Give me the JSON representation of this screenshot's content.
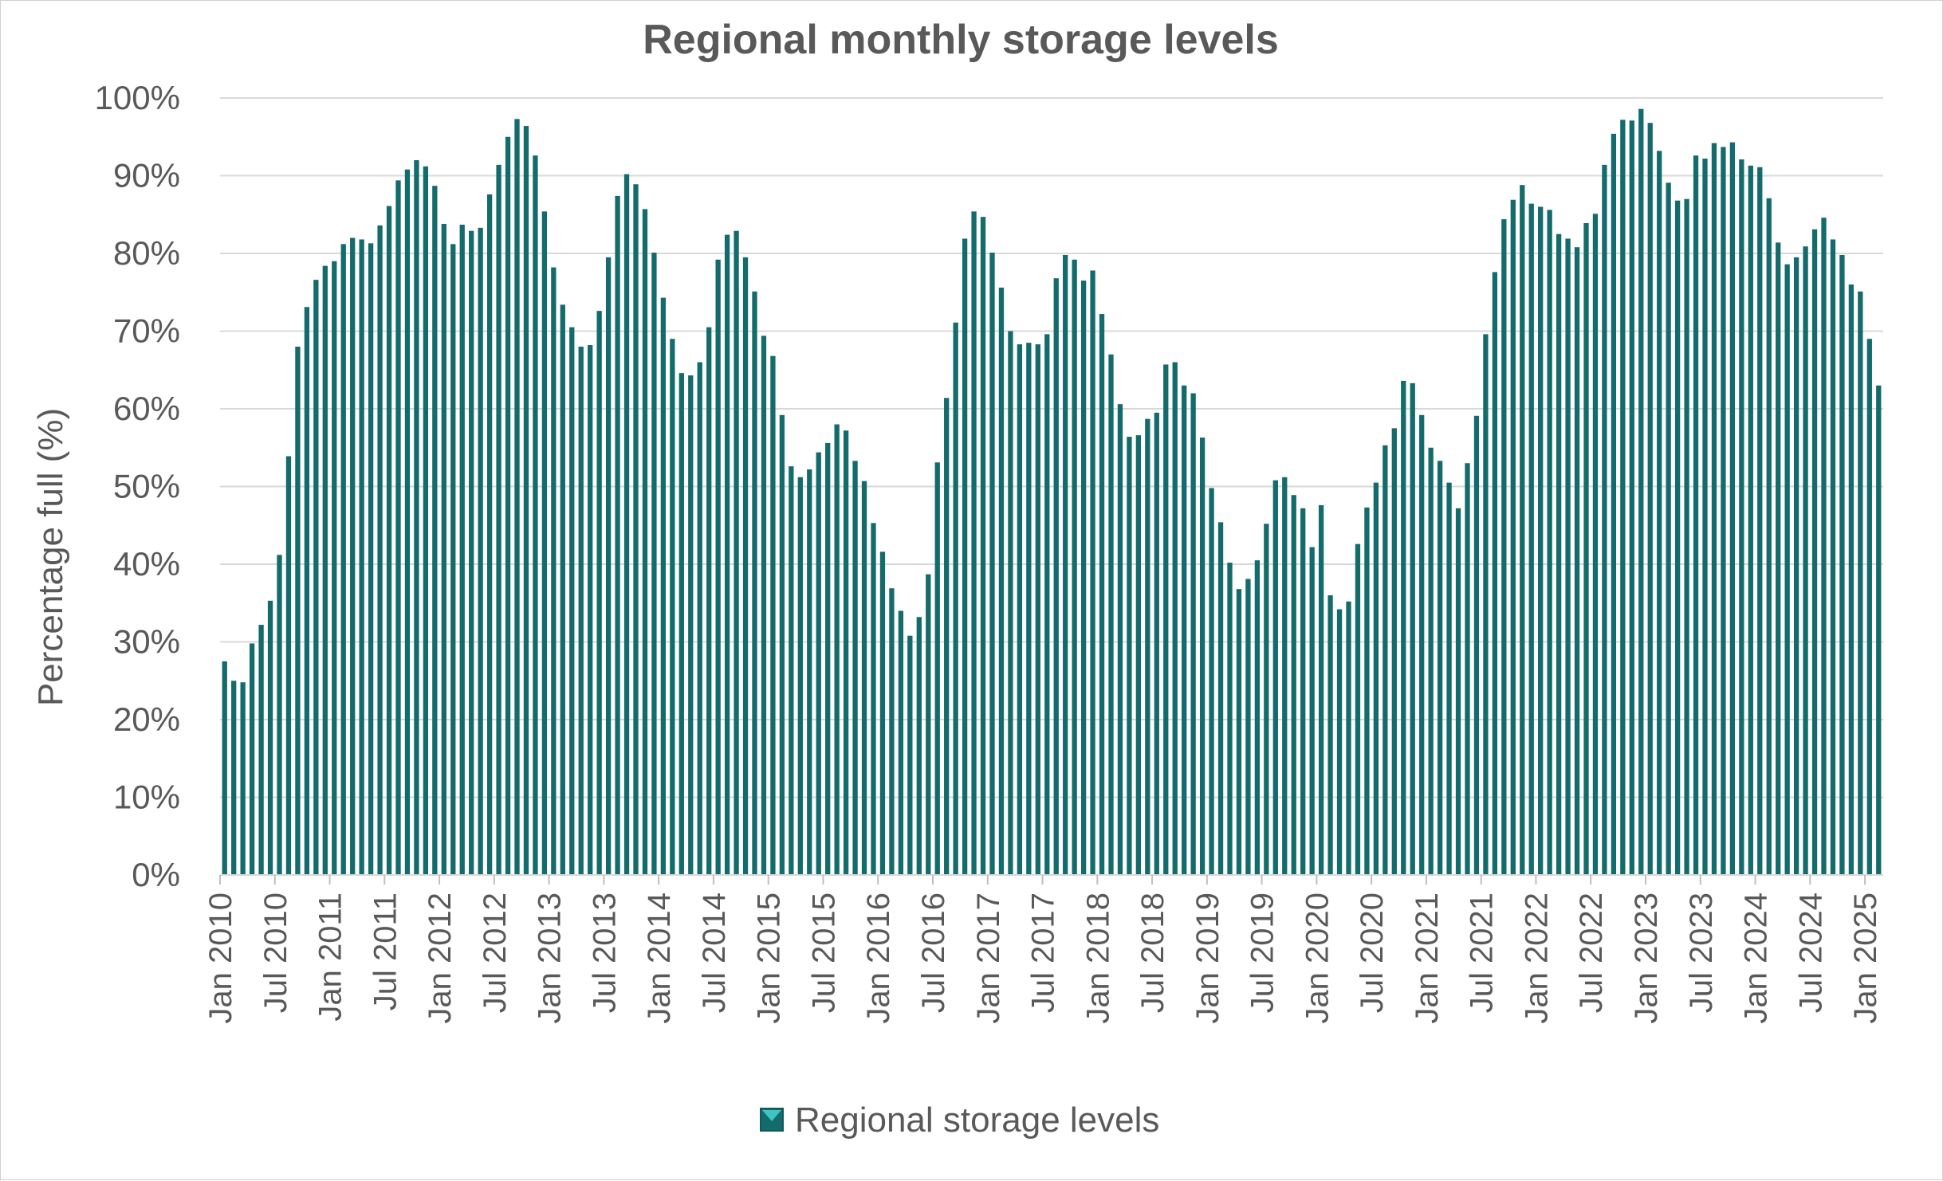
{
  "chart_data": {
    "type": "bar",
    "title": "Regional monthly storage levels",
    "xlabel": "",
    "ylabel": "Percentage full (%)",
    "ylim": [
      0,
      100
    ],
    "yticks": [
      "0%",
      "10%",
      "20%",
      "30%",
      "40%",
      "50%",
      "60%",
      "70%",
      "80%",
      "90%",
      "100%"
    ],
    "xticks": [
      "Jan 2010",
      "Jul 2010",
      "Jan 2011",
      "Jul 2011",
      "Jan 2012",
      "Jul 2012",
      "Jan 2013",
      "Jul 2013",
      "Jan 2014",
      "Jul 2014",
      "Jan 2015",
      "Jul 2015",
      "Jan 2016",
      "Jul 2016",
      "Jan 2017",
      "Jul 2017",
      "Jan 2018",
      "Jul 2018",
      "Jan 2019",
      "Jul 2019",
      "Jan 2020",
      "Jul 2020",
      "Jan 2021",
      "Jul 2021",
      "Jan 2022",
      "Jul 2022",
      "Jan 2023",
      "Jul 2023",
      "Jan 2024",
      "Jul 2024",
      "Jan 2025"
    ],
    "grid": true,
    "legend_position": "bottom",
    "bar_color": "#136b6b",
    "series": [
      {
        "name": "Regional storage levels",
        "values": [
          27.5,
          25.0,
          24.8,
          29.8,
          32.2,
          35.3,
          41.2,
          53.9,
          68.0,
          73.1,
          76.6,
          78.4,
          79.0,
          81.2,
          82.0,
          81.8,
          81.3,
          83.6,
          86.1,
          89.4,
          90.8,
          92.0,
          91.2,
          88.7,
          83.8,
          81.2,
          83.7,
          82.9,
          83.3,
          87.6,
          91.4,
          95.0,
          97.3,
          96.4,
          92.6,
          85.4,
          78.2,
          73.4,
          70.5,
          68.0,
          68.2,
          72.6,
          79.5,
          87.4,
          90.2,
          88.9,
          85.7,
          80.1,
          74.3,
          69.0,
          64.6,
          64.3,
          66.0,
          70.5,
          79.2,
          82.4,
          82.9,
          79.5,
          75.1,
          69.4,
          66.8,
          59.2,
          52.6,
          51.2,
          52.2,
          54.4,
          55.6,
          58.0,
          57.2,
          53.3,
          50.7,
          45.3,
          41.6,
          36.9,
          34.0,
          30.8,
          33.2,
          38.7,
          53.1,
          61.4,
          71.1,
          81.9,
          85.4,
          84.7,
          80.1,
          75.6,
          70.0,
          68.3,
          68.5,
          68.3,
          69.6,
          76.8,
          79.8,
          79.2,
          76.5,
          77.8,
          72.2,
          67.0,
          60.6,
          56.4,
          56.6,
          58.7,
          59.5,
          65.7,
          66.0,
          63.0,
          62.0,
          56.3,
          49.8,
          45.4,
          40.2,
          36.8,
          38.1,
          40.5,
          45.2,
          50.8,
          51.2,
          48.9,
          47.2,
          42.2,
          47.6,
          36.0,
          34.2,
          35.2,
          42.6,
          47.3,
          50.5,
          55.3,
          57.5,
          63.6,
          63.3,
          59.2,
          55.0,
          53.3,
          50.5,
          47.2,
          53.0,
          59.1,
          69.6,
          77.6,
          84.4,
          86.9,
          88.8,
          86.4,
          86.0,
          85.6,
          82.5,
          81.9,
          80.8,
          83.9,
          85.1,
          91.4,
          95.4,
          97.2,
          97.1,
          98.6,
          96.8,
          93.2,
          89.1,
          86.8,
          87.0,
          92.6,
          92.2,
          94.2,
          93.7,
          94.3,
          92.1,
          91.3,
          91.1,
          87.1,
          81.4,
          78.6,
          79.5,
          80.9,
          83.1,
          84.6,
          81.8,
          79.8,
          76.0,
          75.1,
          69.0,
          63.0
        ]
      }
    ]
  }
}
